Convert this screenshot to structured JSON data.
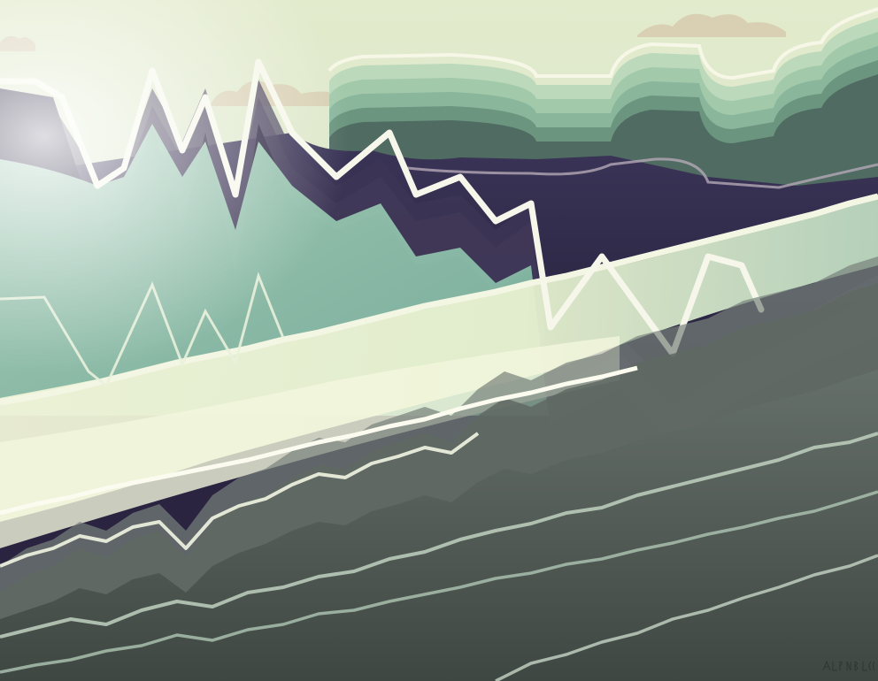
{
  "palette": {
    "sky": "#dfe8c8",
    "teal": "#9fcfb3",
    "deep_purple": "#2a2440",
    "dark_grey": "#4d5651",
    "glow": "#f4f6dc",
    "cloud": "#d7ceb0"
  },
  "signature": {}
}
